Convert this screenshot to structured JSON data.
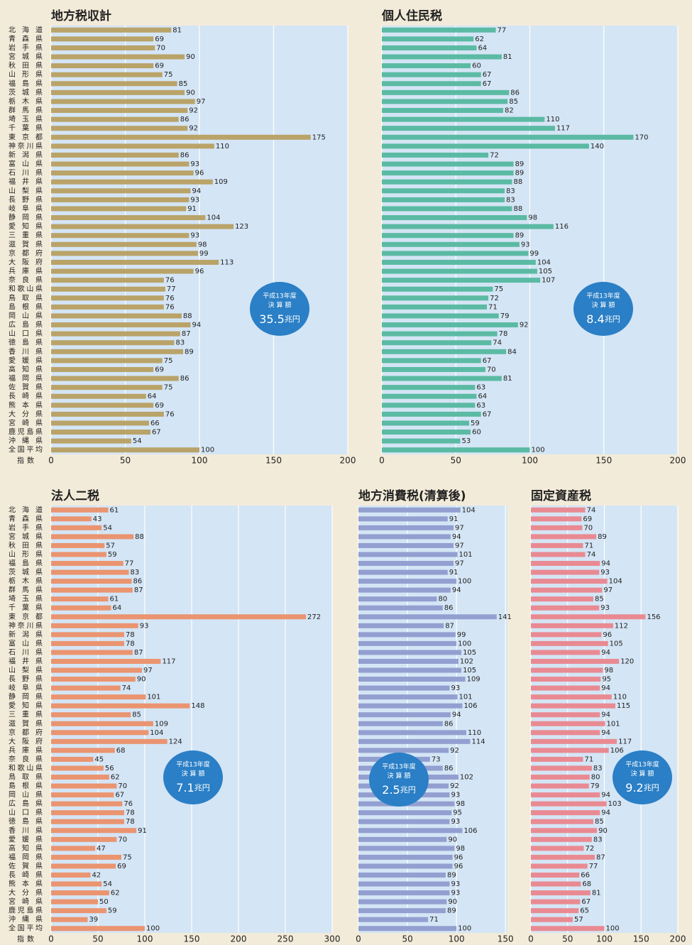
{
  "chart_data": [
    {
      "type": "bar",
      "title": "地方税収計",
      "xlabel": "指数",
      "categories": [
        "北海道",
        "青森県",
        "岩手県",
        "宮城県",
        "秋田県",
        "山形県",
        "福島県",
        "茨城県",
        "栃木県",
        "群馬県",
        "埼玉県",
        "千葉県",
        "東京都",
        "神奈川県",
        "新潟県",
        "富山県",
        "石川県",
        "福井県",
        "山梨県",
        "長野県",
        "岐阜県",
        "静岡県",
        "愛知県",
        "三重県",
        "滋賀県",
        "京都府",
        "大阪府",
        "兵庫県",
        "奈良県",
        "和歌山県",
        "鳥取県",
        "島根県",
        "岡山県",
        "広島県",
        "山口県",
        "徳島県",
        "香川県",
        "愛媛県",
        "高知県",
        "福岡県",
        "佐賀県",
        "長崎県",
        "熊本県",
        "大分県",
        "宮崎県",
        "鹿児島県",
        "沖縄県",
        "全国平均"
      ],
      "values": [
        81,
        69,
        70,
        90,
        69,
        75,
        85,
        90,
        97,
        92,
        86,
        92,
        175,
        110,
        86,
        93,
        96,
        109,
        94,
        93,
        91,
        104,
        123,
        93,
        98,
        99,
        113,
        96,
        76,
        77,
        76,
        76,
        88,
        94,
        87,
        83,
        89,
        75,
        69,
        86,
        75,
        64,
        69,
        76,
        66,
        67,
        54,
        100
      ],
      "color": "#b9a368",
      "xlim": [
        0,
        200
      ],
      "xticks": [
        0,
        50,
        100,
        150,
        200
      ],
      "grid": true,
      "badge": {
        "line1": "平成13年度",
        "line2": "決 算 額",
        "amount": "35.5",
        "unit": "兆円"
      }
    },
    {
      "type": "bar",
      "title": "個人住民税",
      "values": [
        77,
        62,
        64,
        81,
        60,
        67,
        67,
        86,
        85,
        82,
        110,
        117,
        170,
        140,
        72,
        89,
        89,
        88,
        83,
        83,
        88,
        98,
        116,
        89,
        93,
        99,
        104,
        105,
        107,
        75,
        72,
        71,
        79,
        92,
        78,
        74,
        84,
        67,
        70,
        81,
        63,
        64,
        63,
        67,
        59,
        60,
        53,
        100
      ],
      "color": "#5bbaa3",
      "xlim": [
        0,
        200
      ],
      "xticks": [
        0,
        50,
        100,
        150,
        200
      ],
      "grid": true,
      "badge": {
        "line1": "平成13年度",
        "line2": "決 算 額",
        "amount": "8.4",
        "unit": "兆円"
      }
    },
    {
      "type": "bar",
      "title": "法人二税",
      "xlabel": "指数",
      "categories": [
        "北海道",
        "青森県",
        "岩手県",
        "宮城県",
        "秋田県",
        "山形県",
        "福島県",
        "茨城県",
        "栃木県",
        "群馬県",
        "埼玉県",
        "千葉県",
        "東京都",
        "神奈川県",
        "新潟県",
        "富山県",
        "石川県",
        "福井県",
        "山梨県",
        "長野県",
        "岐阜県",
        "静岡県",
        "愛知県",
        "三重県",
        "滋賀県",
        "京都府",
        "大阪府",
        "兵庫県",
        "奈良県",
        "和歌山県",
        "鳥取県",
        "島根県",
        "岡山県",
        "広島県",
        "山口県",
        "徳島県",
        "香川県",
        "愛媛県",
        "高知県",
        "福岡県",
        "佐賀県",
        "長崎県",
        "熊本県",
        "大分県",
        "宮崎県",
        "鹿児島県",
        "沖縄県",
        "全国平均"
      ],
      "values": [
        61,
        43,
        54,
        88,
        57,
        59,
        77,
        83,
        86,
        87,
        61,
        64,
        272,
        93,
        78,
        78,
        87,
        117,
        97,
        90,
        74,
        101,
        148,
        85,
        109,
        104,
        124,
        68,
        45,
        56,
        62,
        70,
        67,
        76,
        78,
        78,
        91,
        70,
        47,
        75,
        69,
        42,
        54,
        62,
        50,
        59,
        39,
        100
      ],
      "color": "#ea9470",
      "xlim": [
        0,
        300
      ],
      "xticks": [
        0,
        50,
        100,
        150,
        200,
        250,
        300
      ],
      "grid": true,
      "badge": {
        "line1": "平成13年度",
        "line2": "決 算 額",
        "amount": "7.1",
        "unit": "兆円"
      }
    },
    {
      "type": "bar",
      "title": "地方消費税(清算後)",
      "values": [
        104,
        91,
        97,
        94,
        97,
        101,
        97,
        91,
        100,
        94,
        80,
        86,
        141,
        87,
        99,
        100,
        105,
        102,
        105,
        109,
        93,
        101,
        106,
        94,
        86,
        110,
        114,
        92,
        73,
        86,
        102,
        92,
        93,
        98,
        95,
        93,
        106,
        90,
        98,
        96,
        96,
        89,
        93,
        93,
        90,
        89,
        71,
        100
      ],
      "color": "#939fd0",
      "xlim": [
        0,
        152
      ],
      "xticks": [
        0,
        50,
        100,
        150
      ],
      "grid": true,
      "badge": {
        "line1": "平成13年度",
        "line2": "決 算 額",
        "amount": "2.5",
        "unit": "兆円"
      }
    },
    {
      "type": "bar",
      "title": "固定資産税",
      "values": [
        74,
        69,
        70,
        89,
        71,
        74,
        94,
        93,
        104,
        97,
        85,
        93,
        156,
        112,
        96,
        105,
        94,
        120,
        98,
        95,
        94,
        110,
        115,
        94,
        101,
        94,
        117,
        106,
        71,
        83,
        80,
        79,
        94,
        103,
        94,
        85,
        90,
        83,
        72,
        87,
        77,
        66,
        68,
        81,
        67,
        65,
        57,
        100
      ],
      "color": "#e98a92",
      "xlim": [
        0,
        200
      ],
      "xticks": [
        0,
        50,
        100,
        150,
        200
      ],
      "grid": true,
      "badge": {
        "line1": "平成13年度",
        "line2": "決 算 額",
        "amount": "9.2",
        "unit": "兆円"
      }
    }
  ]
}
